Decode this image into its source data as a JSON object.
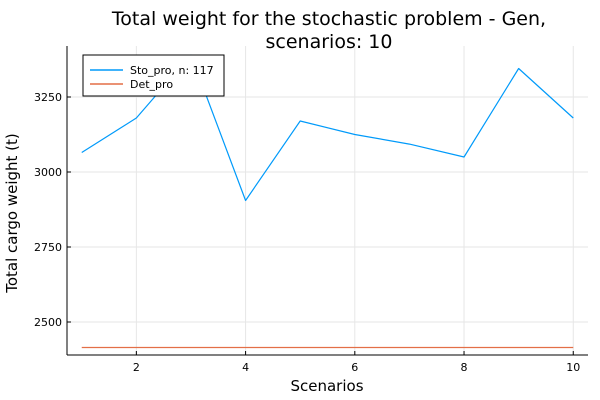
{
  "chart_data": {
    "type": "line",
    "title_lines": [
      "Total weight for the stochastic problem - Gen,",
      "scenarios: 10"
    ],
    "xlabel": "Scenarios",
    "ylabel": "Total cargo weight (t)",
    "xlim": [
      0.73,
      10.27
    ],
    "ylim": [
      2390,
      3420
    ],
    "xticks": [
      2,
      4,
      6,
      8,
      10
    ],
    "yticks": [
      2500,
      2750,
      3000,
      3250
    ],
    "xtick_labels": [
      "2",
      "4",
      "6",
      "8",
      "10"
    ],
    "ytick_labels": [
      "2500",
      "2750",
      "3000",
      "3250"
    ],
    "grid": true,
    "legend_position": "top-left",
    "x": [
      1,
      2,
      3,
      4,
      5,
      6,
      7,
      8,
      9,
      10
    ],
    "series": [
      {
        "name": "Sto_pro, n: 117",
        "color": "#009AFA",
        "values": [
          3065,
          3180,
          3390,
          2905,
          3170,
          3125,
          3093,
          3050,
          3345,
          3180
        ]
      },
      {
        "name": "Det_pro",
        "color": "#E36F47",
        "values": [
          2415,
          2415,
          2415,
          2415,
          2415,
          2415,
          2415,
          2415,
          2415,
          2415
        ]
      }
    ]
  }
}
